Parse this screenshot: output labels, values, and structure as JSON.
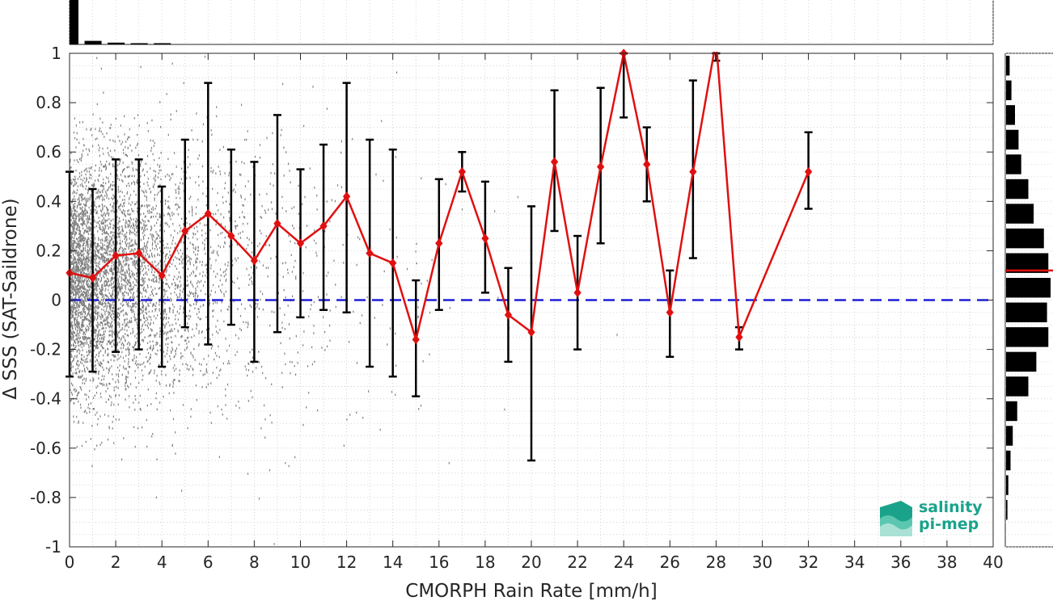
{
  "chart_data": {
    "type": "scatter",
    "xlabel": "CMORPH Rain Rate [mm/h]",
    "ylabel": "Δ SSS (SAT-Saildrone)",
    "xlim": [
      0,
      40
    ],
    "ylim": [
      -1,
      1
    ],
    "x_ticks": [
      "0",
      "2",
      "4",
      "6",
      "8",
      "10",
      "12",
      "14",
      "16",
      "18",
      "20",
      "22",
      "24",
      "26",
      "28",
      "30",
      "32",
      "34",
      "36",
      "38",
      "40"
    ],
    "y_ticks": [
      "-1",
      "-0.8",
      "-0.6",
      "-0.4",
      "-0.2",
      "0",
      "0.2",
      "0.4",
      "0.6",
      "0.8",
      "1"
    ],
    "grid": true,
    "zero_line": {
      "y": 0,
      "color": "#1f1fd6",
      "style": "dashed"
    },
    "mean_series": {
      "color": "#e01010",
      "x": [
        0,
        1,
        2,
        3,
        4,
        5,
        6,
        7,
        8,
        9,
        10,
        11,
        12,
        13,
        14,
        15,
        16,
        17,
        18,
        19,
        20,
        21,
        22,
        23,
        24,
        25,
        26,
        27,
        28,
        29,
        32
      ],
      "y": [
        0.11,
        0.09,
        0.18,
        0.19,
        0.1,
        0.28,
        0.35,
        0.26,
        0.16,
        0.31,
        0.23,
        0.3,
        0.42,
        0.19,
        0.15,
        -0.16,
        0.23,
        0.52,
        0.25,
        -0.06,
        -0.13,
        0.56,
        0.03,
        0.54,
        1.0,
        0.55,
        -0.05,
        0.52,
        1.05,
        -0.15,
        0.52
      ]
    },
    "error_bars": {
      "color": "#000000",
      "x": [
        0,
        1,
        2,
        3,
        4,
        5,
        6,
        7,
        8,
        9,
        10,
        11,
        12,
        13,
        14,
        15,
        16,
        17,
        18,
        19,
        20,
        21,
        22,
        23,
        24,
        25,
        26,
        27,
        28,
        29,
        32
      ],
      "low": [
        -0.31,
        -0.29,
        -0.21,
        -0.2,
        -0.27,
        -0.11,
        -0.18,
        -0.1,
        -0.25,
        -0.13,
        -0.07,
        -0.04,
        -0.05,
        -0.27,
        -0.31,
        -0.39,
        -0.04,
        0.44,
        0.03,
        -0.25,
        -0.65,
        0.28,
        -0.2,
        0.23,
        0.74,
        0.4,
        -0.23,
        0.17,
        0.97,
        -0.2,
        0.37
      ],
      "high": [
        0.52,
        0.45,
        0.57,
        0.57,
        0.46,
        0.65,
        0.88,
        0.61,
        0.56,
        0.75,
        0.53,
        0.63,
        0.88,
        0.65,
        0.61,
        0.08,
        0.49,
        0.6,
        0.48,
        0.13,
        0.38,
        0.85,
        0.26,
        0.86,
        1.0,
        0.7,
        0.12,
        0.89,
        1.0,
        -0.11,
        0.68
      ]
    },
    "scatter_color": "#808080",
    "top_histogram": {
      "bins": [
        0,
        1,
        2,
        3,
        4
      ],
      "relative_heights": [
        1.0,
        0.08,
        0.04,
        0.02,
        0.01
      ]
    },
    "right_histogram": {
      "bin_centers": [
        0.95,
        0.85,
        0.75,
        0.65,
        0.55,
        0.45,
        0.35,
        0.25,
        0.15,
        0.05,
        -0.05,
        -0.15,
        -0.25,
        -0.35,
        -0.45,
        -0.55,
        -0.65,
        -0.75,
        -0.85
      ],
      "relative_widths": [
        0.08,
        0.12,
        0.2,
        0.28,
        0.34,
        0.5,
        0.62,
        0.85,
        0.95,
        1.0,
        0.92,
        0.95,
        0.68,
        0.5,
        0.25,
        0.15,
        0.1,
        0.05,
        0.03
      ],
      "median_line": 0.12,
      "median_color": "#e01010"
    }
  },
  "logo": {
    "line1": "salinity",
    "line2": "pi-mep",
    "color": "#1aa38a"
  }
}
